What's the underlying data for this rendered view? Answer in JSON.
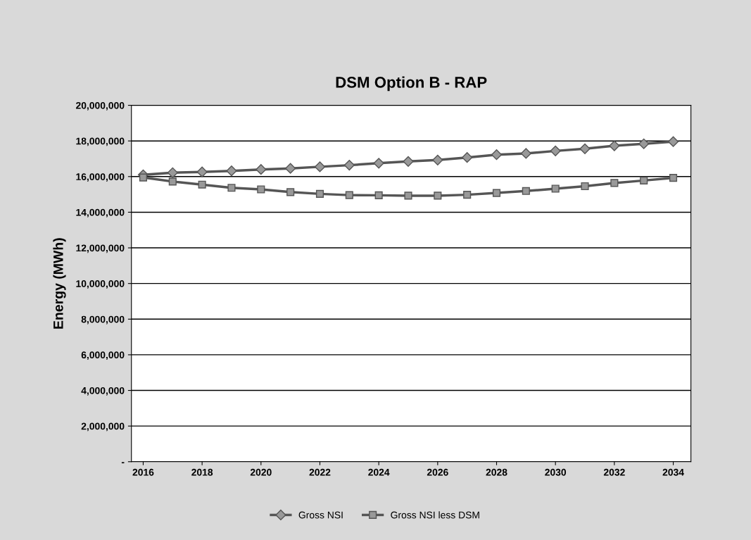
{
  "chart_data": {
    "type": "line",
    "title": "DSM Option B - RAP",
    "ylabel": "Energy (MWh)",
    "x": [
      2016,
      2017,
      2018,
      2019,
      2020,
      2021,
      2022,
      2023,
      2024,
      2025,
      2026,
      2027,
      2028,
      2029,
      2030,
      2031,
      2032,
      2033,
      2034
    ],
    "series": [
      {
        "name": "Gross NSI",
        "color": "#555555",
        "marker": "diamond",
        "values": [
          16100000,
          16220000,
          16260000,
          16320000,
          16400000,
          16460000,
          16550000,
          16640000,
          16750000,
          16850000,
          16930000,
          17070000,
          17230000,
          17300000,
          17440000,
          17560000,
          17730000,
          17840000,
          17960000
        ]
      },
      {
        "name": "Gross NSI less DSM",
        "color": "#555555",
        "marker": "square",
        "values": [
          15950000,
          15720000,
          15550000,
          15370000,
          15280000,
          15130000,
          15030000,
          14960000,
          14950000,
          14930000,
          14930000,
          14980000,
          15080000,
          15190000,
          15320000,
          15460000,
          15640000,
          15780000,
          15930000
        ]
      }
    ],
    "xlim": [
      2015.6,
      2034.6
    ],
    "xticks": [
      2016,
      2018,
      2020,
      2022,
      2024,
      2026,
      2028,
      2030,
      2032,
      2034
    ],
    "ylim": [
      0,
      20000000
    ],
    "yticks": [
      {
        "value": 0,
        "label": "-"
      },
      {
        "value": 2000000,
        "label": "2,000,000"
      },
      {
        "value": 4000000,
        "label": "4,000,000"
      },
      {
        "value": 6000000,
        "label": "6,000,000"
      },
      {
        "value": 8000000,
        "label": "8,000,000"
      },
      {
        "value": 10000000,
        "label": "10,000,000"
      },
      {
        "value": 12000000,
        "label": "12,000,000"
      },
      {
        "value": 14000000,
        "label": "14,000,000"
      },
      {
        "value": 16000000,
        "label": "16,000,000"
      },
      {
        "value": 18000000,
        "label": "18,000,000"
      },
      {
        "value": 20000000,
        "label": "20,000,000"
      }
    ],
    "grid": "y",
    "legend": "bottom",
    "line_style": "solid"
  }
}
